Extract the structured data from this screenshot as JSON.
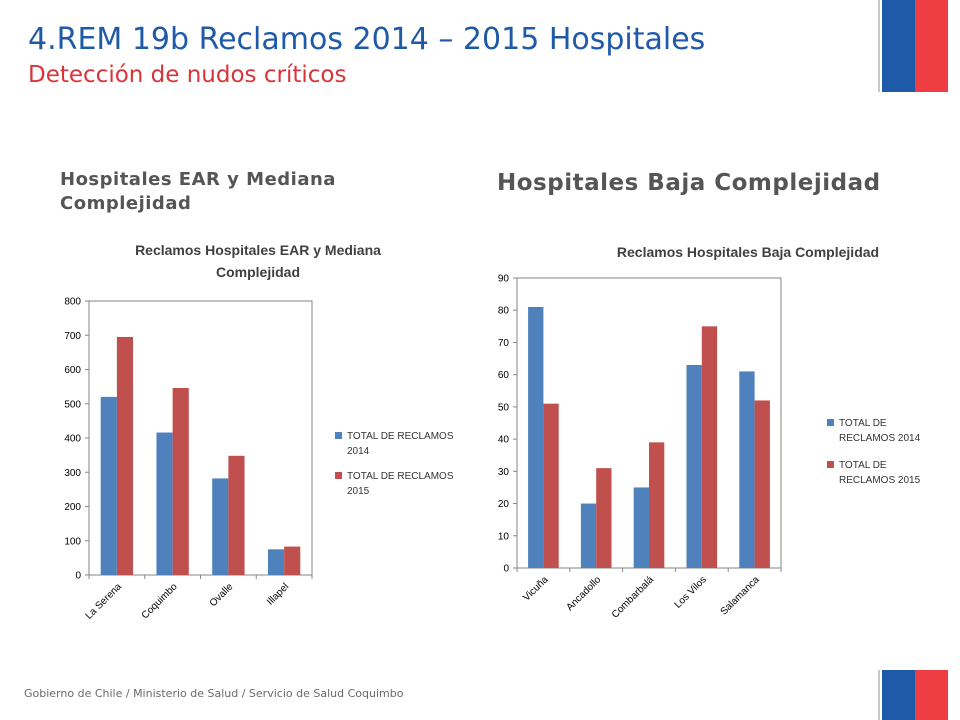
{
  "slide": {
    "title_number": "4.",
    "title": "REM 19b Reclamos 2014 – 2015 Hospitales",
    "subtitle": "Detección de nudos críticos",
    "footer": "Gobierno de Chile / Ministerio de Salud / Servicio de Salud Coquimbo"
  },
  "sections": {
    "left_heading": "Hospitales EAR y Mediana Complejidad",
    "right_heading": "Hospitales Baja Complejidad"
  },
  "colors": {
    "series_2014": "#4f81bd",
    "series_2015": "#c0504d",
    "flag_blue": "#1f5aa8",
    "flag_red": "#ee3e43"
  },
  "chart_data": [
    {
      "type": "bar",
      "title_lines": [
        "Reclamos Hospitales EAR y Mediana",
        "Complejidad"
      ],
      "categories": [
        "La Serena",
        "Coquimbo",
        "Ovalle",
        "Illapel"
      ],
      "series": [
        {
          "name": "TOTAL DE RECLAMOS 2014",
          "legend_lines": [
            "TOTAL DE RECLAMOS",
            "2014"
          ],
          "values": [
            520,
            416,
            282,
            75
          ]
        },
        {
          "name": "TOTAL DE RECLAMOS 2015",
          "legend_lines": [
            "TOTAL DE RECLAMOS",
            "2015"
          ],
          "values": [
            695,
            546,
            348,
            83
          ]
        }
      ],
      "xlabel": "",
      "ylabel": "",
      "ylim": [
        0,
        800
      ],
      "yticks": [
        0,
        100,
        200,
        300,
        400,
        500,
        600,
        700,
        800
      ],
      "grid": false,
      "legend": "right"
    },
    {
      "type": "bar",
      "title_lines": [
        "Reclamos Hospitales Baja Complejidad"
      ],
      "categories": [
        "Vicuña",
        "Ancadollo",
        "Combarbalá",
        "Los Vilos",
        "Salamanca"
      ],
      "series": [
        {
          "name": "TOTAL DE RECLAMOS 2014",
          "legend_lines": [
            "TOTAL DE",
            "RECLAMOS 2014"
          ],
          "values": [
            81,
            20,
            25,
            63,
            61
          ]
        },
        {
          "name": "TOTAL DE RECLAMOS 2015",
          "legend_lines": [
            "TOTAL DE",
            "RECLAMOS 2015"
          ],
          "values": [
            51,
            31,
            39,
            75,
            52
          ]
        }
      ],
      "xlabel": "",
      "ylabel": "",
      "ylim": [
        0,
        90
      ],
      "yticks": [
        0,
        10,
        20,
        30,
        40,
        50,
        60,
        70,
        80,
        90
      ],
      "grid": false,
      "legend": "right"
    }
  ]
}
